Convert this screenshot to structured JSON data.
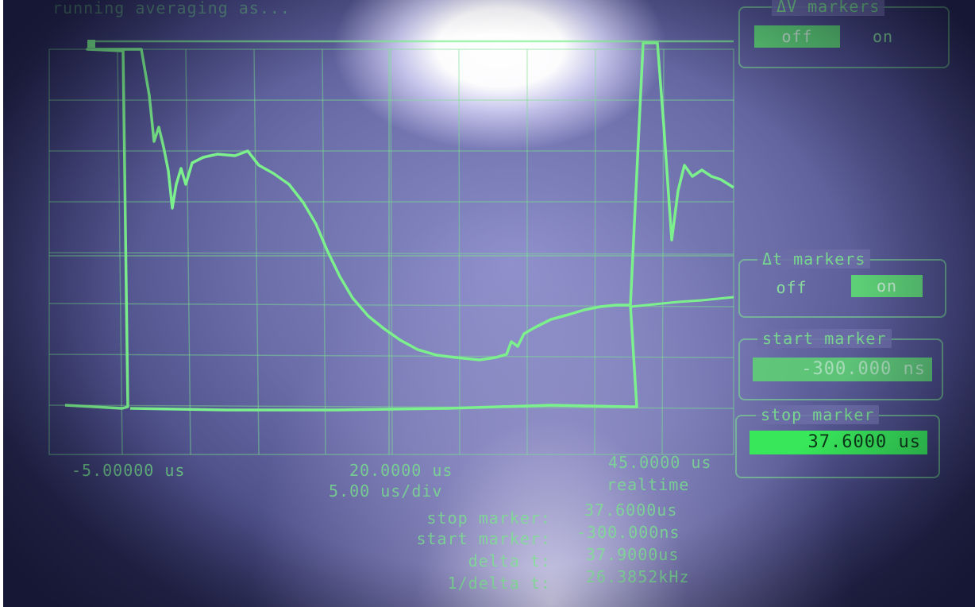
{
  "header": {
    "title": "running averaging as..."
  },
  "scale": {
    "left_time": "-5.00000 us",
    "center_time": "20.0000 us",
    "right_time": "45.0000 us",
    "time_per_div": "5.00 us/div",
    "mode": "realtime"
  },
  "dv_markers": {
    "title": "ΔV markers",
    "off_label": "off",
    "on_label": "on",
    "selected": "off"
  },
  "dt_markers": {
    "title": "Δt markers",
    "off_label": "off",
    "on_label": "on",
    "selected": "on"
  },
  "start_marker": {
    "title": "start marker",
    "value": "-300.000 ns"
  },
  "stop_marker": {
    "title": "stop marker",
    "value": "37.6000 us"
  },
  "readouts": [
    {
      "label": "stop marker:",
      "value": "37.6000us"
    },
    {
      "label": "start marker:",
      "value": "-300.000ns"
    },
    {
      "label": "delta t:",
      "value": "37.9000us"
    },
    {
      "label": "1/delta t:",
      "value": "26.3852kHz"
    }
  ],
  "colors": {
    "trace": "#7cf08c",
    "screen": "#6d6fab"
  }
}
